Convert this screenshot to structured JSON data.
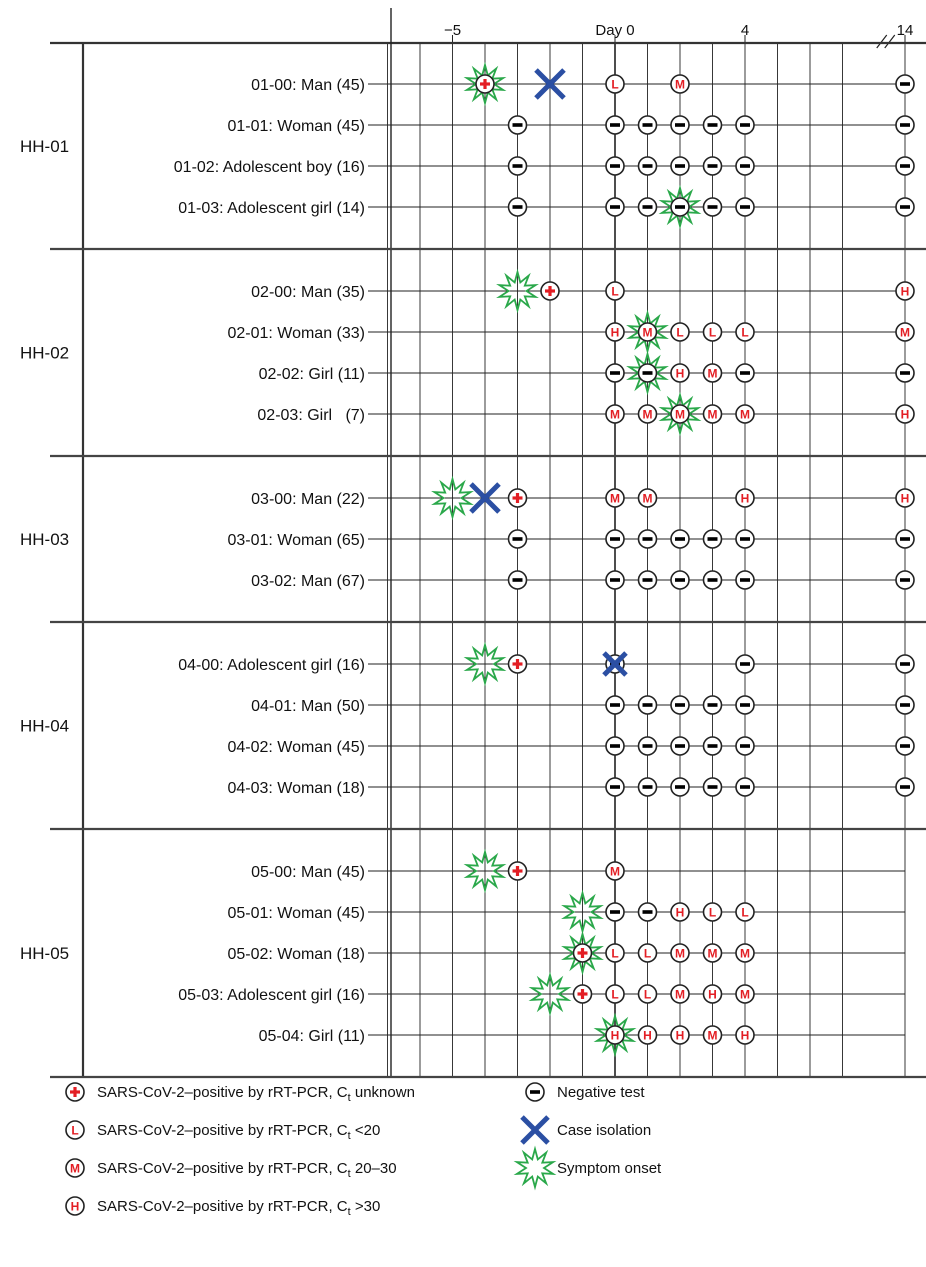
{
  "chart_data": {
    "type": "timeline",
    "x_ticks": [
      {
        "day": -5,
        "label": "−5"
      },
      {
        "day": 0,
        "label": "Day 0"
      },
      {
        "day": 4,
        "label": "4"
      },
      {
        "day": 14,
        "label": "14"
      }
    ],
    "x_range_shown": [
      -7,
      14
    ],
    "axis_break_between_days": [
      7,
      13
    ],
    "symbol_colors": {
      "positive": "#e31e24",
      "isolation": "#2b4fa3",
      "onset": "#2aa84a",
      "negative": "#000000"
    },
    "households": [
      {
        "id": "HH-01",
        "members": [
          {
            "label": "01-00: Man (45)",
            "onset": -4,
            "isolation": -2,
            "tests": [
              {
                "day": -4,
                "r": "+"
              },
              {
                "day": 0,
                "r": "L"
              },
              {
                "day": 2,
                "r": "M"
              },
              {
                "day": 14,
                "r": "-"
              }
            ]
          },
          {
            "label": "01-01: Woman (45)",
            "tests": [
              {
                "day": -3,
                "r": "-"
              },
              {
                "day": 0,
                "r": "-"
              },
              {
                "day": 1,
                "r": "-"
              },
              {
                "day": 2,
                "r": "-"
              },
              {
                "day": 3,
                "r": "-"
              },
              {
                "day": 4,
                "r": "-"
              },
              {
                "day": 14,
                "r": "-"
              }
            ]
          },
          {
            "label": "01-02: Adolescent boy (16)",
            "tests": [
              {
                "day": -3,
                "r": "-"
              },
              {
                "day": 0,
                "r": "-"
              },
              {
                "day": 1,
                "r": "-"
              },
              {
                "day": 2,
                "r": "-"
              },
              {
                "day": 3,
                "r": "-"
              },
              {
                "day": 4,
                "r": "-"
              },
              {
                "day": 14,
                "r": "-"
              }
            ]
          },
          {
            "label": "01-03: Adolescent girl (14)",
            "onset": 2,
            "tests": [
              {
                "day": -3,
                "r": "-"
              },
              {
                "day": 0,
                "r": "-"
              },
              {
                "day": 1,
                "r": "-"
              },
              {
                "day": 2,
                "r": "-"
              },
              {
                "day": 3,
                "r": "-"
              },
              {
                "day": 4,
                "r": "-"
              },
              {
                "day": 14,
                "r": "-"
              }
            ]
          }
        ]
      },
      {
        "id": "HH-02",
        "members": [
          {
            "label": "02-00: Man (35)",
            "onset": -3,
            "tests": [
              {
                "day": -2,
                "r": "+"
              },
              {
                "day": 0,
                "r": "L"
              },
              {
                "day": 14,
                "r": "H"
              }
            ]
          },
          {
            "label": "02-01: Woman (33)",
            "onset": 1,
            "tests": [
              {
                "day": 0,
                "r": "H"
              },
              {
                "day": 1,
                "r": "M"
              },
              {
                "day": 2,
                "r": "L"
              },
              {
                "day": 3,
                "r": "L"
              },
              {
                "day": 4,
                "r": "L"
              },
              {
                "day": 14,
                "r": "M"
              }
            ]
          },
          {
            "label": "02-02: Girl (11)",
            "onset": 1,
            "tests": [
              {
                "day": 0,
                "r": "-"
              },
              {
                "day": 1,
                "r": "-"
              },
              {
                "day": 2,
                "r": "H"
              },
              {
                "day": 3,
                "r": "M"
              },
              {
                "day": 4,
                "r": "-"
              },
              {
                "day": 14,
                "r": "-"
              }
            ]
          },
          {
            "label": "02-03: Girl   (7)",
            "onset": 2,
            "tests": [
              {
                "day": 0,
                "r": "M"
              },
              {
                "day": 1,
                "r": "M"
              },
              {
                "day": 2,
                "r": "M"
              },
              {
                "day": 3,
                "r": "M"
              },
              {
                "day": 4,
                "r": "M"
              },
              {
                "day": 14,
                "r": "H"
              }
            ]
          }
        ]
      },
      {
        "id": "HH-03",
        "members": [
          {
            "label": "03-00: Man (22)",
            "onset": -5,
            "isolation": -4,
            "tests": [
              {
                "day": -3,
                "r": "+"
              },
              {
                "day": 0,
                "r": "M"
              },
              {
                "day": 1,
                "r": "M"
              },
              {
                "day": 4,
                "r": "H"
              },
              {
                "day": 14,
                "r": "H"
              }
            ]
          },
          {
            "label": "03-01: Woman (65)",
            "tests": [
              {
                "day": -3,
                "r": "-"
              },
              {
                "day": 0,
                "r": "-"
              },
              {
                "day": 1,
                "r": "-"
              },
              {
                "day": 2,
                "r": "-"
              },
              {
                "day": 3,
                "r": "-"
              },
              {
                "day": 4,
                "r": "-"
              },
              {
                "day": 14,
                "r": "-"
              }
            ]
          },
          {
            "label": "03-02: Man (67)",
            "tests": [
              {
                "day": -3,
                "r": "-"
              },
              {
                "day": 0,
                "r": "-"
              },
              {
                "day": 1,
                "r": "-"
              },
              {
                "day": 2,
                "r": "-"
              },
              {
                "day": 3,
                "r": "-"
              },
              {
                "day": 4,
                "r": "-"
              },
              {
                "day": 14,
                "r": "-"
              }
            ]
          }
        ]
      },
      {
        "id": "HH-04",
        "members": [
          {
            "label": "04-00: Adolescent girl (16)",
            "onset": -4,
            "isolation": 0,
            "tests": [
              {
                "day": -3,
                "r": "+"
              },
              {
                "day": 0,
                "r": "-"
              },
              {
                "day": 4,
                "r": "-"
              },
              {
                "day": 14,
                "r": "-"
              }
            ]
          },
          {
            "label": "04-01: Man (50)",
            "tests": [
              {
                "day": 0,
                "r": "-"
              },
              {
                "day": 1,
                "r": "-"
              },
              {
                "day": 2,
                "r": "-"
              },
              {
                "day": 3,
                "r": "-"
              },
              {
                "day": 4,
                "r": "-"
              },
              {
                "day": 14,
                "r": "-"
              }
            ]
          },
          {
            "label": "04-02: Woman (45)",
            "tests": [
              {
                "day": 0,
                "r": "-"
              },
              {
                "day": 1,
                "r": "-"
              },
              {
                "day": 2,
                "r": "-"
              },
              {
                "day": 3,
                "r": "-"
              },
              {
                "day": 4,
                "r": "-"
              },
              {
                "day": 14,
                "r": "-"
              }
            ]
          },
          {
            "label": "04-03: Woman (18)",
            "tests": [
              {
                "day": 0,
                "r": "-"
              },
              {
                "day": 1,
                "r": "-"
              },
              {
                "day": 2,
                "r": "-"
              },
              {
                "day": 3,
                "r": "-"
              },
              {
                "day": 4,
                "r": "-"
              },
              {
                "day": 14,
                "r": "-"
              }
            ]
          }
        ]
      },
      {
        "id": "HH-05",
        "members": [
          {
            "label": "05-00: Man (45)",
            "onset": -4,
            "tests": [
              {
                "day": -3,
                "r": "+"
              },
              {
                "day": 0,
                "r": "M"
              }
            ]
          },
          {
            "label": "05-01: Woman (45)",
            "onset": -1,
            "tests": [
              {
                "day": 0,
                "r": "-"
              },
              {
                "day": 1,
                "r": "-"
              },
              {
                "day": 2,
                "r": "H"
              },
              {
                "day": 3,
                "r": "L"
              },
              {
                "day": 4,
                "r": "L"
              }
            ]
          },
          {
            "label": "05-02: Woman (18)",
            "onset": -1,
            "tests": [
              {
                "day": -1,
                "r": "+"
              },
              {
                "day": 0,
                "r": "L"
              },
              {
                "day": 1,
                "r": "L"
              },
              {
                "day": 2,
                "r": "M"
              },
              {
                "day": 3,
                "r": "M"
              },
              {
                "day": 4,
                "r": "M"
              }
            ]
          },
          {
            "label": "05-03: Adolescent girl (16)",
            "onset": -2,
            "tests": [
              {
                "day": -1,
                "r": "+"
              },
              {
                "day": 0,
                "r": "L"
              },
              {
                "day": 1,
                "r": "L"
              },
              {
                "day": 2,
                "r": "M"
              },
              {
                "day": 3,
                "r": "H"
              },
              {
                "day": 4,
                "r": "M"
              }
            ]
          },
          {
            "label": "05-04: Girl (11)",
            "onset": 0,
            "tests": [
              {
                "day": 0,
                "r": "H"
              },
              {
                "day": 1,
                "r": "H"
              },
              {
                "day": 2,
                "r": "H"
              },
              {
                "day": 3,
                "r": "M"
              },
              {
                "day": 4,
                "r": "H"
              }
            ]
          }
        ]
      }
    ],
    "legend": [
      {
        "key": "plus",
        "prefix": "SARS-CoV-2–positive by rRT-PCR, C",
        "sub": "t",
        "suffix": " unknown"
      },
      {
        "key": "L",
        "prefix": "SARS-CoV-2–positive by rRT-PCR, C",
        "sub": "t",
        "suffix": " <20"
      },
      {
        "key": "M",
        "prefix": "SARS-CoV-2–positive by rRT-PCR, C",
        "sub": "t",
        "suffix": " 20–30"
      },
      {
        "key": "H",
        "prefix": "SARS-CoV-2–positive by rRT-PCR, C",
        "sub": "t",
        "suffix": " >30"
      },
      {
        "key": "negative",
        "prefix": "Negative test",
        "sub": "",
        "suffix": ""
      },
      {
        "key": "isolation",
        "prefix": "Case isolation",
        "sub": "",
        "suffix": ""
      },
      {
        "key": "onset",
        "prefix": "Symptom onset",
        "sub": "",
        "suffix": ""
      }
    ]
  }
}
